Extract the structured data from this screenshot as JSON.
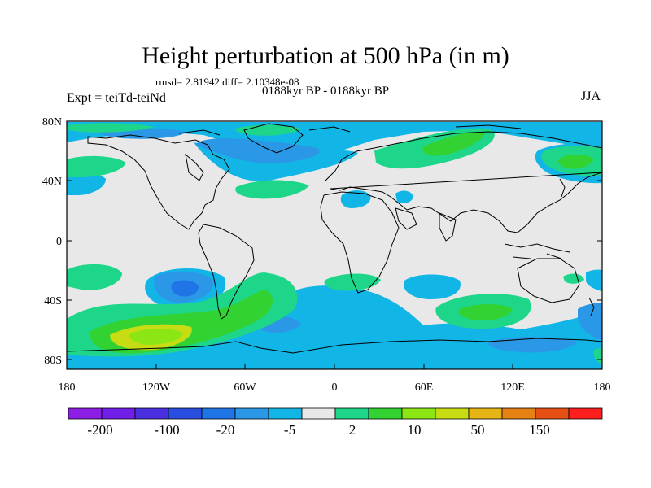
{
  "title": "Height perturbation at 500 hPa (in m)",
  "stats": "rmsd= 2.81942 diff= 2.10348e-08",
  "experiment": "Expt = teiTd-teiNd",
  "period": "0188kyr BP - 0188kyr BP",
  "season": "JJA",
  "lat_labels": [
    "80N",
    "40N",
    "0",
    "40S",
    "80S"
  ],
  "lon_labels": [
    "180",
    "120W",
    "60W",
    "0",
    "60E",
    "120E",
    "180"
  ],
  "colorbar": {
    "labels": [
      "-200",
      "-100",
      "-20",
      "-5",
      "2",
      "10",
      "50",
      "150"
    ],
    "colors": [
      "#8c1ee6",
      "#6f1fe8",
      "#4a2fe0",
      "#2a4ee0",
      "#1f74e6",
      "#2a98e6",
      "#12b6e6",
      "#e8e8e8",
      "#1ed68a",
      "#32d232",
      "#8ce614",
      "#c8dc14",
      "#e6b414",
      "#e68214",
      "#e65014",
      "#ff1e1e"
    ]
  },
  "map_colors": {
    "land_bg": "#e8e8e8",
    "coast": "#000000"
  }
}
